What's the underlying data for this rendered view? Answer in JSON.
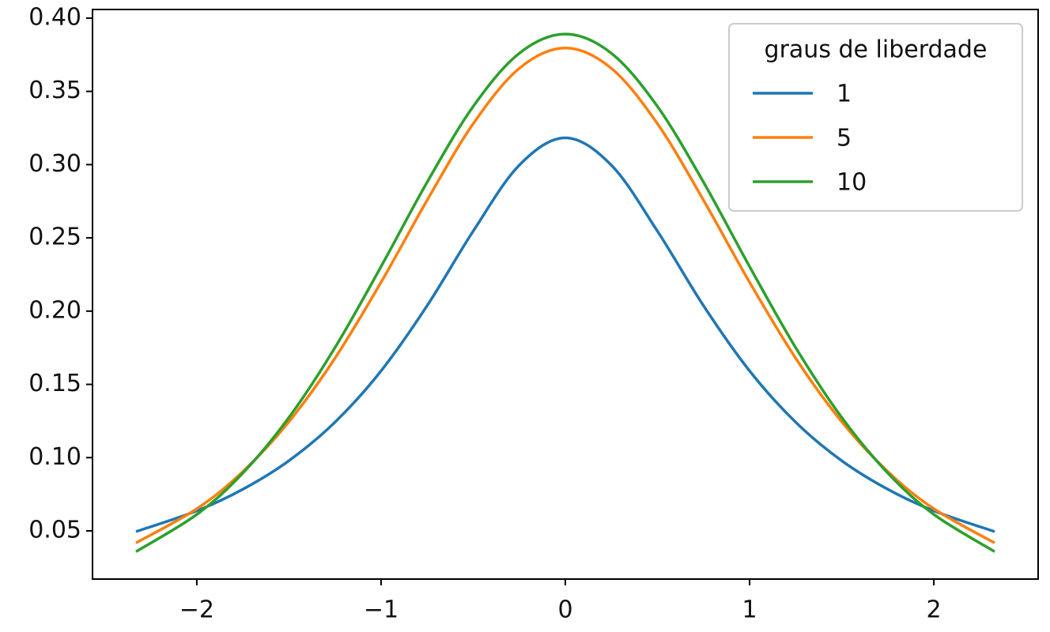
{
  "chart_data": {
    "type": "line",
    "x": [
      -2.33,
      -2.0,
      -1.75,
      -1.5,
      -1.25,
      -1.0,
      -0.75,
      -0.5,
      -0.25,
      0,
      0.25,
      0.5,
      0.75,
      1.0,
      1.25,
      1.5,
      1.75,
      2.0,
      2.33
    ],
    "series": [
      {
        "name": "1",
        "color": "#1f77b4",
        "values": [
          0.0495,
          0.0637,
          0.0784,
          0.0979,
          0.1242,
          0.1592,
          0.2037,
          0.2546,
          0.2996,
          0.3183,
          0.2996,
          0.2546,
          0.2037,
          0.1592,
          0.1242,
          0.0979,
          0.0784,
          0.0637,
          0.0495
        ]
      },
      {
        "name": "5",
        "color": "#ff7f0e",
        "values": [
          0.0418,
          0.0651,
          0.0905,
          0.1245,
          0.1679,
          0.2197,
          0.2757,
          0.3279,
          0.3657,
          0.3796,
          0.3657,
          0.3279,
          0.2757,
          0.2197,
          0.1679,
          0.1245,
          0.0905,
          0.0651,
          0.0418
        ]
      },
      {
        "name": "10",
        "color": "#2ca02c",
        "values": [
          0.0358,
          0.0612,
          0.0895,
          0.1274,
          0.1751,
          0.2304,
          0.288,
          0.3397,
          0.376,
          0.3891,
          0.376,
          0.3397,
          0.288,
          0.2304,
          0.1751,
          0.1274,
          0.0895,
          0.0612,
          0.0358
        ]
      }
    ],
    "legend_title": "graus de liberdade",
    "legend_position": "upper right",
    "xlim": [
      -2.566,
      2.566
    ],
    "ylim": [
      0.0171,
      0.4059
    ],
    "xticks": [
      {
        "value": -2,
        "label": "−2"
      },
      {
        "value": -1,
        "label": "−1"
      },
      0,
      1,
      2
    ],
    "yticks": [
      {
        "value": 0.05,
        "label": "0.05"
      },
      {
        "value": 0.1,
        "label": "0.10"
      },
      {
        "value": 0.15,
        "label": "0.15"
      },
      {
        "value": 0.2,
        "label": "0.20"
      },
      {
        "value": 0.25,
        "label": "0.25"
      },
      {
        "value": 0.3,
        "label": "0.30"
      },
      {
        "value": 0.35,
        "label": "0.35"
      },
      {
        "value": 0.4,
        "label": "0.40"
      }
    ],
    "grid": false
  }
}
